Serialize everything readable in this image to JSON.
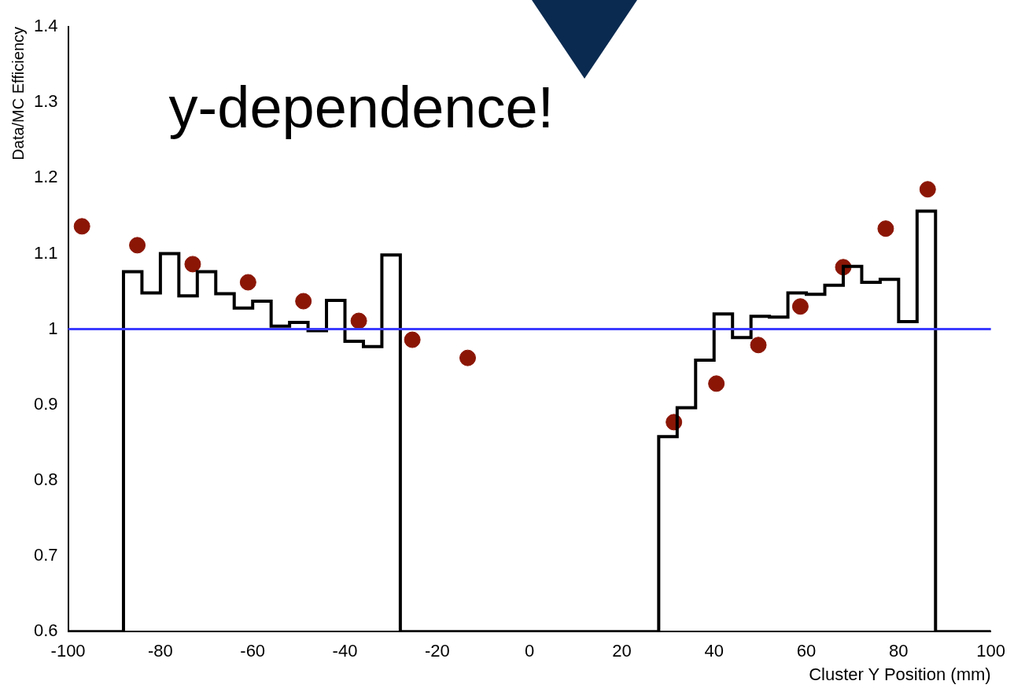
{
  "chart_data": {
    "type": "histogram",
    "xlabel": "Cluster Y Position (mm)",
    "ylabel": "Data/MC Efficiency",
    "annotations": [
      "y-dependence!"
    ],
    "bins": [
      -100,
      -96,
      -92,
      -88,
      -84,
      -80,
      -76,
      -72,
      -68,
      -64,
      -60,
      -56,
      -52,
      -48,
      -44,
      -40,
      -36,
      -32,
      -28,
      -24,
      -20,
      -16,
      -12,
      -8,
      -4,
      0,
      4,
      8,
      12,
      16,
      20,
      24,
      28,
      32,
      36,
      40,
      44,
      48,
      52,
      56,
      60,
      64,
      68,
      72,
      76,
      80,
      84,
      88,
      92,
      96,
      100
    ],
    "series": [
      {
        "color": "#000000",
        "values": [
          0.6,
          0.6,
          0.6,
          1.076,
          1.048,
          1.1,
          1.044,
          1.076,
          1.047,
          1.028,
          1.037,
          1.004,
          1.009,
          0.998,
          1.038,
          0.984,
          0.977,
          1.098,
          0.6,
          0.6,
          0.6,
          0.6,
          0.6,
          0.6,
          0.6,
          0.6,
          0.6,
          0.6,
          0.6,
          0.6,
          0.6,
          0.6,
          0.858,
          0.896,
          0.959,
          1.02,
          0.989,
          1.017,
          1.016,
          1.048,
          1.046,
          1.058,
          1.083,
          1.062,
          1.066,
          1.01,
          1.156,
          0.6,
          0.6,
          0.6
        ]
      },
      {
        "type": "scatter",
        "color": "#8b1606",
        "marker": "circle",
        "x": [
          -97,
          -85,
          -73,
          -61,
          -49,
          -37,
          -25.4,
          -13.4,
          31.3,
          40.5,
          49.6,
          58.7,
          68,
          77.2,
          86.3
        ],
        "values": [
          1.136,
          1.111,
          1.086,
          1.062,
          1.037,
          1.011,
          0.986,
          0.962,
          0.877,
          0.928,
          0.979,
          1.03,
          1.082,
          1.133,
          1.185
        ]
      }
    ],
    "ref_lines": [
      {
        "axis": "y",
        "value": 1,
        "color": "#3b3bff"
      }
    ],
    "xlim": [
      -100,
      100
    ],
    "xticks": [
      -100,
      -80,
      -60,
      -40,
      -20,
      0,
      20,
      40,
      60,
      80,
      100
    ],
    "ylim": [
      0.6,
      1.4
    ],
    "yticks": [
      0.6,
      0.7,
      0.8,
      0.9,
      1,
      1.1,
      1.2,
      1.3,
      1.4
    ],
    "grid": false,
    "legend": false
  }
}
